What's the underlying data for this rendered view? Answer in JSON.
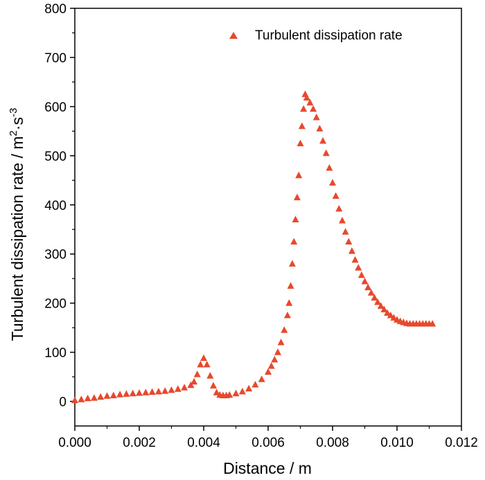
{
  "chart_data": {
    "type": "scatter",
    "xlabel": "Distance / m",
    "ylabel": {
      "text": "Turbulent dissipation rate / m",
      "exp1": "2",
      "mid": "·s",
      "exp2": "-3"
    },
    "xlim": [
      0.0,
      0.012
    ],
    "ylim": [
      -50,
      800
    ],
    "x_ticks": [
      "0.000",
      "0.002",
      "0.004",
      "0.006",
      "0.008",
      "0.010",
      "0.012"
    ],
    "y_ticks": [
      "0",
      "100",
      "200",
      "300",
      "400",
      "500",
      "600",
      "700",
      "800"
    ],
    "grid": false,
    "legend_position": "top-right",
    "marker": "triangle-up",
    "color": "#e8482c",
    "series": [
      {
        "name": "Turbulent dissipation rate",
        "points": [
          [
            0.0,
            2
          ],
          [
            0.0002,
            4
          ],
          [
            0.0004,
            6
          ],
          [
            0.0006,
            7
          ],
          [
            0.0008,
            9
          ],
          [
            0.001,
            11
          ],
          [
            0.0012,
            12
          ],
          [
            0.0014,
            14
          ],
          [
            0.0016,
            15
          ],
          [
            0.0018,
            16
          ],
          [
            0.002,
            17
          ],
          [
            0.0022,
            18
          ],
          [
            0.0024,
            19
          ],
          [
            0.0026,
            20
          ],
          [
            0.0028,
            21
          ],
          [
            0.003,
            23
          ],
          [
            0.0032,
            25
          ],
          [
            0.0034,
            28
          ],
          [
            0.0036,
            33
          ],
          [
            0.0037,
            40
          ],
          [
            0.0038,
            55
          ],
          [
            0.0039,
            75
          ],
          [
            0.004,
            88
          ],
          [
            0.0041,
            75
          ],
          [
            0.0042,
            52
          ],
          [
            0.0043,
            32
          ],
          [
            0.0044,
            18
          ],
          [
            0.0045,
            13
          ],
          [
            0.0046,
            12
          ],
          [
            0.0047,
            12
          ],
          [
            0.0048,
            13
          ],
          [
            0.005,
            16
          ],
          [
            0.0052,
            20
          ],
          [
            0.0054,
            26
          ],
          [
            0.0056,
            34
          ],
          [
            0.0058,
            45
          ],
          [
            0.006,
            60
          ],
          [
            0.0061,
            72
          ],
          [
            0.0062,
            85
          ],
          [
            0.0063,
            100
          ],
          [
            0.0064,
            120
          ],
          [
            0.0065,
            145
          ],
          [
            0.0066,
            175
          ],
          [
            0.00665,
            200
          ],
          [
            0.0067,
            235
          ],
          [
            0.00675,
            280
          ],
          [
            0.0068,
            325
          ],
          [
            0.00685,
            370
          ],
          [
            0.0069,
            415
          ],
          [
            0.00695,
            460
          ],
          [
            0.007,
            525
          ],
          [
            0.00705,
            560
          ],
          [
            0.0071,
            595
          ],
          [
            0.00715,
            625
          ],
          [
            0.0072,
            618
          ],
          [
            0.0073,
            608
          ],
          [
            0.0074,
            595
          ],
          [
            0.0075,
            578
          ],
          [
            0.0076,
            555
          ],
          [
            0.0077,
            530
          ],
          [
            0.0078,
            505
          ],
          [
            0.0079,
            475
          ],
          [
            0.008,
            445
          ],
          [
            0.0081,
            418
          ],
          [
            0.0082,
            392
          ],
          [
            0.0083,
            368
          ],
          [
            0.0084,
            345
          ],
          [
            0.0085,
            325
          ],
          [
            0.0086,
            306
          ],
          [
            0.0087,
            288
          ],
          [
            0.0088,
            272
          ],
          [
            0.0089,
            257
          ],
          [
            0.009,
            244
          ],
          [
            0.0091,
            232
          ],
          [
            0.0092,
            221
          ],
          [
            0.0093,
            211
          ],
          [
            0.0094,
            202
          ],
          [
            0.0095,
            194
          ],
          [
            0.0096,
            187
          ],
          [
            0.0097,
            180
          ],
          [
            0.0098,
            175
          ],
          [
            0.0099,
            170
          ],
          [
            0.01,
            166
          ],
          [
            0.0101,
            163
          ],
          [
            0.0102,
            161
          ],
          [
            0.0103,
            159
          ],
          [
            0.0104,
            158
          ],
          [
            0.0105,
            158
          ],
          [
            0.0106,
            158
          ],
          [
            0.0107,
            158
          ],
          [
            0.0108,
            158
          ],
          [
            0.0109,
            158
          ],
          [
            0.011,
            158
          ],
          [
            0.0111,
            158
          ]
        ]
      }
    ]
  }
}
